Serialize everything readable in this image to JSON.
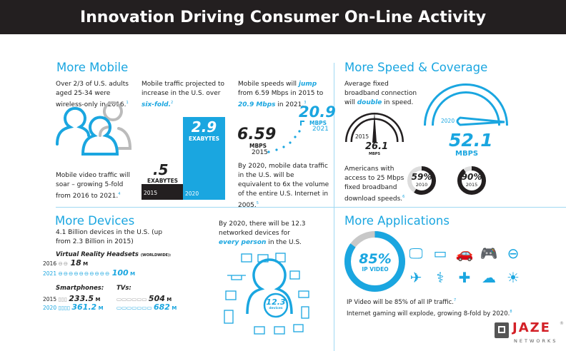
{
  "header": {
    "title": "Innovation Driving Consumer On-Line Activity"
  },
  "colors": {
    "accent": "#1aa6e0",
    "dark": "#231f20",
    "gray": "#c8c8c8",
    "logo_red": "#d32027"
  },
  "mobile": {
    "title": "More Mobile",
    "wireless": {
      "pre": "Over 2/3 of U.S. adults aged 25-34 were wireless-only in 2016.",
      "note": "1"
    },
    "video": {
      "pre": "Mobile video traffic will soar – growing 5-fold from 2016 to 2021.",
      "note": "4"
    },
    "traffic": {
      "pre": "Mobile traffic projected to increase in the U.S. over ",
      "em": "six-fold.",
      "note": "2"
    },
    "bars": [
      {
        "year": "2015",
        "value": ".5",
        "unit": "EXABYTES",
        "amount": 0.5
      },
      {
        "year": "2020",
        "value": "2.9",
        "unit": "EXABYTES",
        "amount": 2.9
      }
    ],
    "speeds": {
      "p1": "Mobile speeds will ",
      "em1": "jump",
      "p2": " from 6.59 Mbps in 2015 to ",
      "em2": "20.9 Mbps",
      "p3": " in 2021.",
      "note": "3"
    },
    "speed_from": {
      "value": "6.59",
      "unit": "MBPS",
      "year": "2015"
    },
    "speed_to": {
      "value": "20.9",
      "unit": "MBPS",
      "year": "2021"
    },
    "equiv": {
      "text": "By 2020, mobile data traffic in the U.S. will be equivalent to 6x the volume of the entire U.S. Internet in 2005.",
      "note": "5"
    }
  },
  "speed": {
    "title": "More Speed & Coverage",
    "intro": {
      "p1": "Average fixed broadband connection will ",
      "em": "double",
      "p2": " in speed."
    },
    "gauge_2015": {
      "year": "2015",
      "value": "26.1",
      "unit": "MBPS"
    },
    "gauge_2020": {
      "year": "2020",
      "value": "52.1",
      "unit": "MBPS"
    },
    "access": {
      "text": "Americans with access to 25 Mbps fixed broadband download speeds.",
      "note": "6"
    },
    "donuts": [
      {
        "value": "59%",
        "year": "2010",
        "percent": 59
      },
      {
        "value": "90%",
        "year": "2015",
        "percent": 90
      }
    ]
  },
  "devices": {
    "title": "More Devices",
    "intro": "4.1 Billion devices in the U.S. (up from 2.3 Billion in 2015)",
    "vr": {
      "label": "Virtual Reality Headsets",
      "qualifier": "(WORLDWIDE):",
      "rows": [
        {
          "year": "2016",
          "value": "18",
          "unit": "M"
        },
        {
          "year": "2021",
          "value": "100",
          "unit": "M"
        }
      ]
    },
    "smartphones": {
      "label": "Smartphones:",
      "rows": [
        {
          "year": "2015",
          "value": "233.5",
          "unit": "M"
        },
        {
          "year": "2020",
          "value": "361.2",
          "unit": "M"
        }
      ]
    },
    "tvs": {
      "label": "TVs:",
      "rows": [
        {
          "value": "504",
          "unit": "M"
        },
        {
          "value": "682",
          "unit": "M"
        }
      ]
    },
    "per_person": {
      "p1": "By 2020, there will be 12.3 networked devices for ",
      "em": "every person",
      "p2": " in the U.S."
    },
    "badge": {
      "value": "12.3",
      "unit": "devices"
    }
  },
  "apps": {
    "title": "More Applications",
    "donut": {
      "value": "85%",
      "label": "IP VIDEO",
      "percent": 85
    },
    "icons": [
      "tv-remote-icon",
      "tablet-icon",
      "connected-car-icon",
      "gamepad-icon",
      "vr-headset-icon",
      "drone-icon",
      "stethoscope-icon",
      "ambulance-icon",
      "cloud-icon",
      "smart-bulb-icon"
    ],
    "line1": {
      "text": "IP Video will be 85% of all IP traffic.",
      "note": "7"
    },
    "line2": {
      "text": "Internet gaming will explode, growing 8-fold by 2020.",
      "note": "8"
    }
  },
  "logo": {
    "name": "JAZE",
    "sub": "NETWORKS",
    "mark": "®"
  }
}
